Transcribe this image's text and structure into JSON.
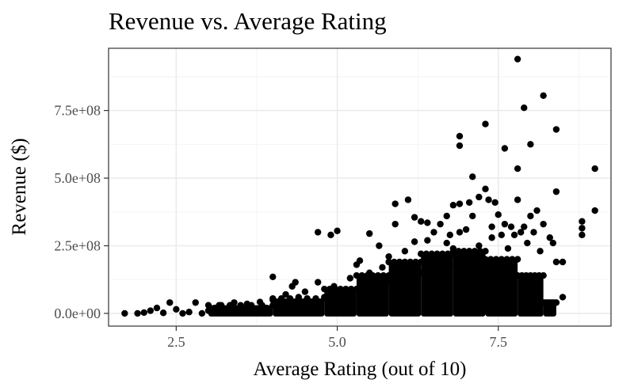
{
  "chart_data": {
    "type": "scatter",
    "title": "Revenue vs. Average Rating",
    "xlabel": "Average Rating (out of 10)",
    "ylabel": "Revenue ($)",
    "xlim": [
      1.45,
      9.25
    ],
    "ylim": [
      -47000000,
      980000000
    ],
    "x_ticks": [
      2.5,
      5.0,
      7.5
    ],
    "x_tick_labels": [
      "2.5",
      "5.0",
      "7.5"
    ],
    "y_ticks": [
      0,
      250000000,
      500000000,
      750000000
    ],
    "y_tick_labels": [
      "0.0e+00",
      "2.5e+08",
      "5.0e+08",
      "7.5e+08"
    ],
    "grid": true,
    "point_color": "#000000",
    "points": [
      [
        1.7,
        0
      ],
      [
        1.9,
        0
      ],
      [
        2.0,
        3000000
      ],
      [
        2.1,
        10000000
      ],
      [
        2.2,
        20000000
      ],
      [
        2.3,
        2000000
      ],
      [
        2.4,
        40000000
      ],
      [
        2.5,
        15000000
      ],
      [
        2.6,
        0
      ],
      [
        2.7,
        5000000
      ],
      [
        2.8,
        40000000
      ],
      [
        2.9,
        0
      ],
      [
        3.0,
        10000000
      ],
      [
        3.1,
        20000000
      ],
      [
        3.2,
        30000000
      ],
      [
        3.3,
        5000000
      ],
      [
        3.4,
        40000000
      ],
      [
        3.5,
        25000000
      ],
      [
        3.6,
        35000000
      ],
      [
        3.7,
        10000000
      ],
      [
        3.8,
        42000000
      ],
      [
        3.9,
        20000000
      ],
      [
        4.0,
        135000000
      ],
      [
        4.0,
        50000000
      ],
      [
        4.1,
        30000000
      ],
      [
        4.2,
        70000000
      ],
      [
        4.3,
        100000000
      ],
      [
        4.35,
        115000000
      ],
      [
        4.4,
        60000000
      ],
      [
        4.5,
        80000000
      ],
      [
        4.6,
        40000000
      ],
      [
        4.7,
        300000000
      ],
      [
        4.7,
        115000000
      ],
      [
        4.8,
        60000000
      ],
      [
        4.9,
        290000000
      ],
      [
        4.95,
        100000000
      ],
      [
        5.0,
        305000000
      ],
      [
        5.0,
        55000000
      ],
      [
        5.1,
        80000000
      ],
      [
        5.2,
        130000000
      ],
      [
        5.3,
        180000000
      ],
      [
        5.35,
        195000000
      ],
      [
        5.4,
        110000000
      ],
      [
        5.5,
        150000000
      ],
      [
        5.5,
        295000000
      ],
      [
        5.6,
        85000000
      ],
      [
        5.65,
        250000000
      ],
      [
        5.7,
        170000000
      ],
      [
        5.8,
        120000000
      ],
      [
        5.8,
        210000000
      ],
      [
        5.9,
        405000000
      ],
      [
        5.9,
        330000000
      ],
      [
        6.0,
        180000000
      ],
      [
        6.05,
        230000000
      ],
      [
        6.1,
        420000000
      ],
      [
        6.1,
        95000000
      ],
      [
        6.2,
        355000000
      ],
      [
        6.2,
        265000000
      ],
      [
        6.3,
        340000000
      ],
      [
        6.3,
        150000000
      ],
      [
        6.4,
        335000000
      ],
      [
        6.4,
        270000000
      ],
      [
        6.5,
        300000000
      ],
      [
        6.5,
        200000000
      ],
      [
        6.6,
        330000000
      ],
      [
        6.6,
        170000000
      ],
      [
        6.7,
        360000000
      ],
      [
        6.7,
        260000000
      ],
      [
        6.75,
        290000000
      ],
      [
        6.8,
        400000000
      ],
      [
        6.8,
        240000000
      ],
      [
        6.85,
        180000000
      ],
      [
        6.9,
        655000000
      ],
      [
        6.9,
        620000000
      ],
      [
        6.9,
        405000000
      ],
      [
        6.9,
        300000000
      ],
      [
        7.0,
        310000000
      ],
      [
        7.05,
        410000000
      ],
      [
        7.1,
        505000000
      ],
      [
        7.1,
        360000000
      ],
      [
        7.2,
        430000000
      ],
      [
        7.2,
        250000000
      ],
      [
        7.3,
        700000000
      ],
      [
        7.3,
        460000000
      ],
      [
        7.35,
        420000000
      ],
      [
        7.4,
        320000000
      ],
      [
        7.4,
        280000000
      ],
      [
        7.45,
        410000000
      ],
      [
        7.5,
        365000000
      ],
      [
        7.55,
        290000000
      ],
      [
        7.6,
        610000000
      ],
      [
        7.6,
        330000000
      ],
      [
        7.65,
        240000000
      ],
      [
        7.7,
        320000000
      ],
      [
        7.75,
        290000000
      ],
      [
        7.8,
        940000000
      ],
      [
        7.8,
        535000000
      ],
      [
        7.8,
        420000000
      ],
      [
        7.85,
        300000000
      ],
      [
        7.9,
        760000000
      ],
      [
        7.9,
        320000000
      ],
      [
        7.95,
        260000000
      ],
      [
        8.0,
        625000000
      ],
      [
        8.0,
        360000000
      ],
      [
        8.05,
        300000000
      ],
      [
        8.1,
        380000000
      ],
      [
        8.15,
        230000000
      ],
      [
        8.2,
        805000000
      ],
      [
        8.2,
        330000000
      ],
      [
        8.3,
        280000000
      ],
      [
        8.35,
        260000000
      ],
      [
        8.4,
        680000000
      ],
      [
        8.4,
        450000000
      ],
      [
        8.4,
        190000000
      ],
      [
        8.5,
        190000000
      ],
      [
        8.5,
        60000000
      ],
      [
        8.8,
        340000000
      ],
      [
        8.8,
        315000000
      ],
      [
        8.8,
        290000000
      ],
      [
        9.0,
        535000000
      ],
      [
        9.0,
        380000000
      ]
    ],
    "dense_band": [
      {
        "x_from": 3.0,
        "x_to": 4.0,
        "y_max": 30000000
      },
      {
        "x_from": 4.0,
        "x_to": 4.8,
        "y_max": 55000000
      },
      {
        "x_from": 4.8,
        "x_to": 5.3,
        "y_max": 90000000
      },
      {
        "x_from": 5.3,
        "x_to": 5.8,
        "y_max": 140000000
      },
      {
        "x_from": 5.8,
        "x_to": 6.3,
        "y_max": 190000000
      },
      {
        "x_from": 6.3,
        "x_to": 6.8,
        "y_max": 220000000
      },
      {
        "x_from": 6.8,
        "x_to": 7.3,
        "y_max": 230000000
      },
      {
        "x_from": 7.3,
        "x_to": 7.8,
        "y_max": 200000000
      },
      {
        "x_from": 7.8,
        "x_to": 8.2,
        "y_max": 140000000
      },
      {
        "x_from": 8.2,
        "x_to": 8.4,
        "y_max": 40000000
      }
    ]
  }
}
